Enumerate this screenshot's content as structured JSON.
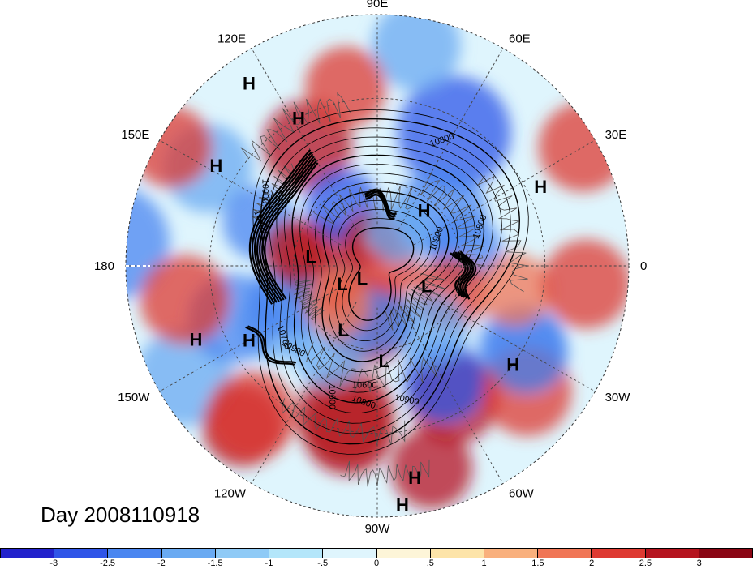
{
  "title": "Day 2008110918",
  "longitude_labels": [
    {
      "text": "90E",
      "angle": 90
    },
    {
      "text": "60E",
      "angle": 60
    },
    {
      "text": "30E",
      "angle": 30
    },
    {
      "text": "0",
      "angle": 0
    },
    {
      "text": "30W",
      "angle": -30
    },
    {
      "text": "60W",
      "angle": -60
    },
    {
      "text": "90W",
      "angle": -90
    },
    {
      "text": "120W",
      "angle": -120
    },
    {
      "text": "150W",
      "angle": -150
    },
    {
      "text": "180",
      "angle": 180
    },
    {
      "text": "150E",
      "angle": 150
    },
    {
      "text": "120E",
      "angle": 120
    }
  ],
  "pressure_centers": [
    {
      "type": "H",
      "lat": 10,
      "lon": 125
    },
    {
      "type": "H",
      "lat": 30,
      "lon": 118
    },
    {
      "type": "H",
      "lat": 22,
      "lon": 148
    },
    {
      "type": "H",
      "lat": 20,
      "lon": -158
    },
    {
      "type": "H",
      "lat": 37,
      "lon": -150
    },
    {
      "type": "H",
      "lat": 25,
      "lon": 26
    },
    {
      "type": "H",
      "lat": 64,
      "lon": 50
    },
    {
      "type": "H",
      "lat": 30,
      "lon": -36
    },
    {
      "type": "H",
      "lat": 13,
      "lon": -80
    },
    {
      "type": "H",
      "lat": 4,
      "lon": -84
    },
    {
      "type": "L",
      "lat": 64,
      "lon": -118
    },
    {
      "type": "L",
      "lat": 76,
      "lon": -153
    },
    {
      "type": "L",
      "lat": 83,
      "lon": -140
    },
    {
      "type": "L",
      "lat": 71,
      "lon": -22
    },
    {
      "type": "L",
      "lat": 66,
      "lon": 172
    },
    {
      "type": "L",
      "lat": 56,
      "lon": -86
    }
  ],
  "contour_labels": [
    "10900",
    "10800",
    "10900",
    "10600",
    "10800",
    "10900",
    "10900",
    "10700",
    "10600",
    "10800",
    "10900"
  ],
  "colorbar": {
    "ticks": [
      "-3",
      "-2.5",
      "-2",
      "-1.5",
      "-1",
      "-.5",
      "0",
      ".5",
      "1",
      "1.5",
      "2",
      "2.5",
      "3"
    ],
    "colors": [
      "#2222cc",
      "#2f55e8",
      "#4a86f0",
      "#6aaaf2",
      "#8fcaf6",
      "#b4e6fa",
      "#dff5fd",
      "#fdf5d8",
      "#fde4a9",
      "#f9b07d",
      "#f07656",
      "#de3a32",
      "#b5141f",
      "#8a0614"
    ]
  }
}
